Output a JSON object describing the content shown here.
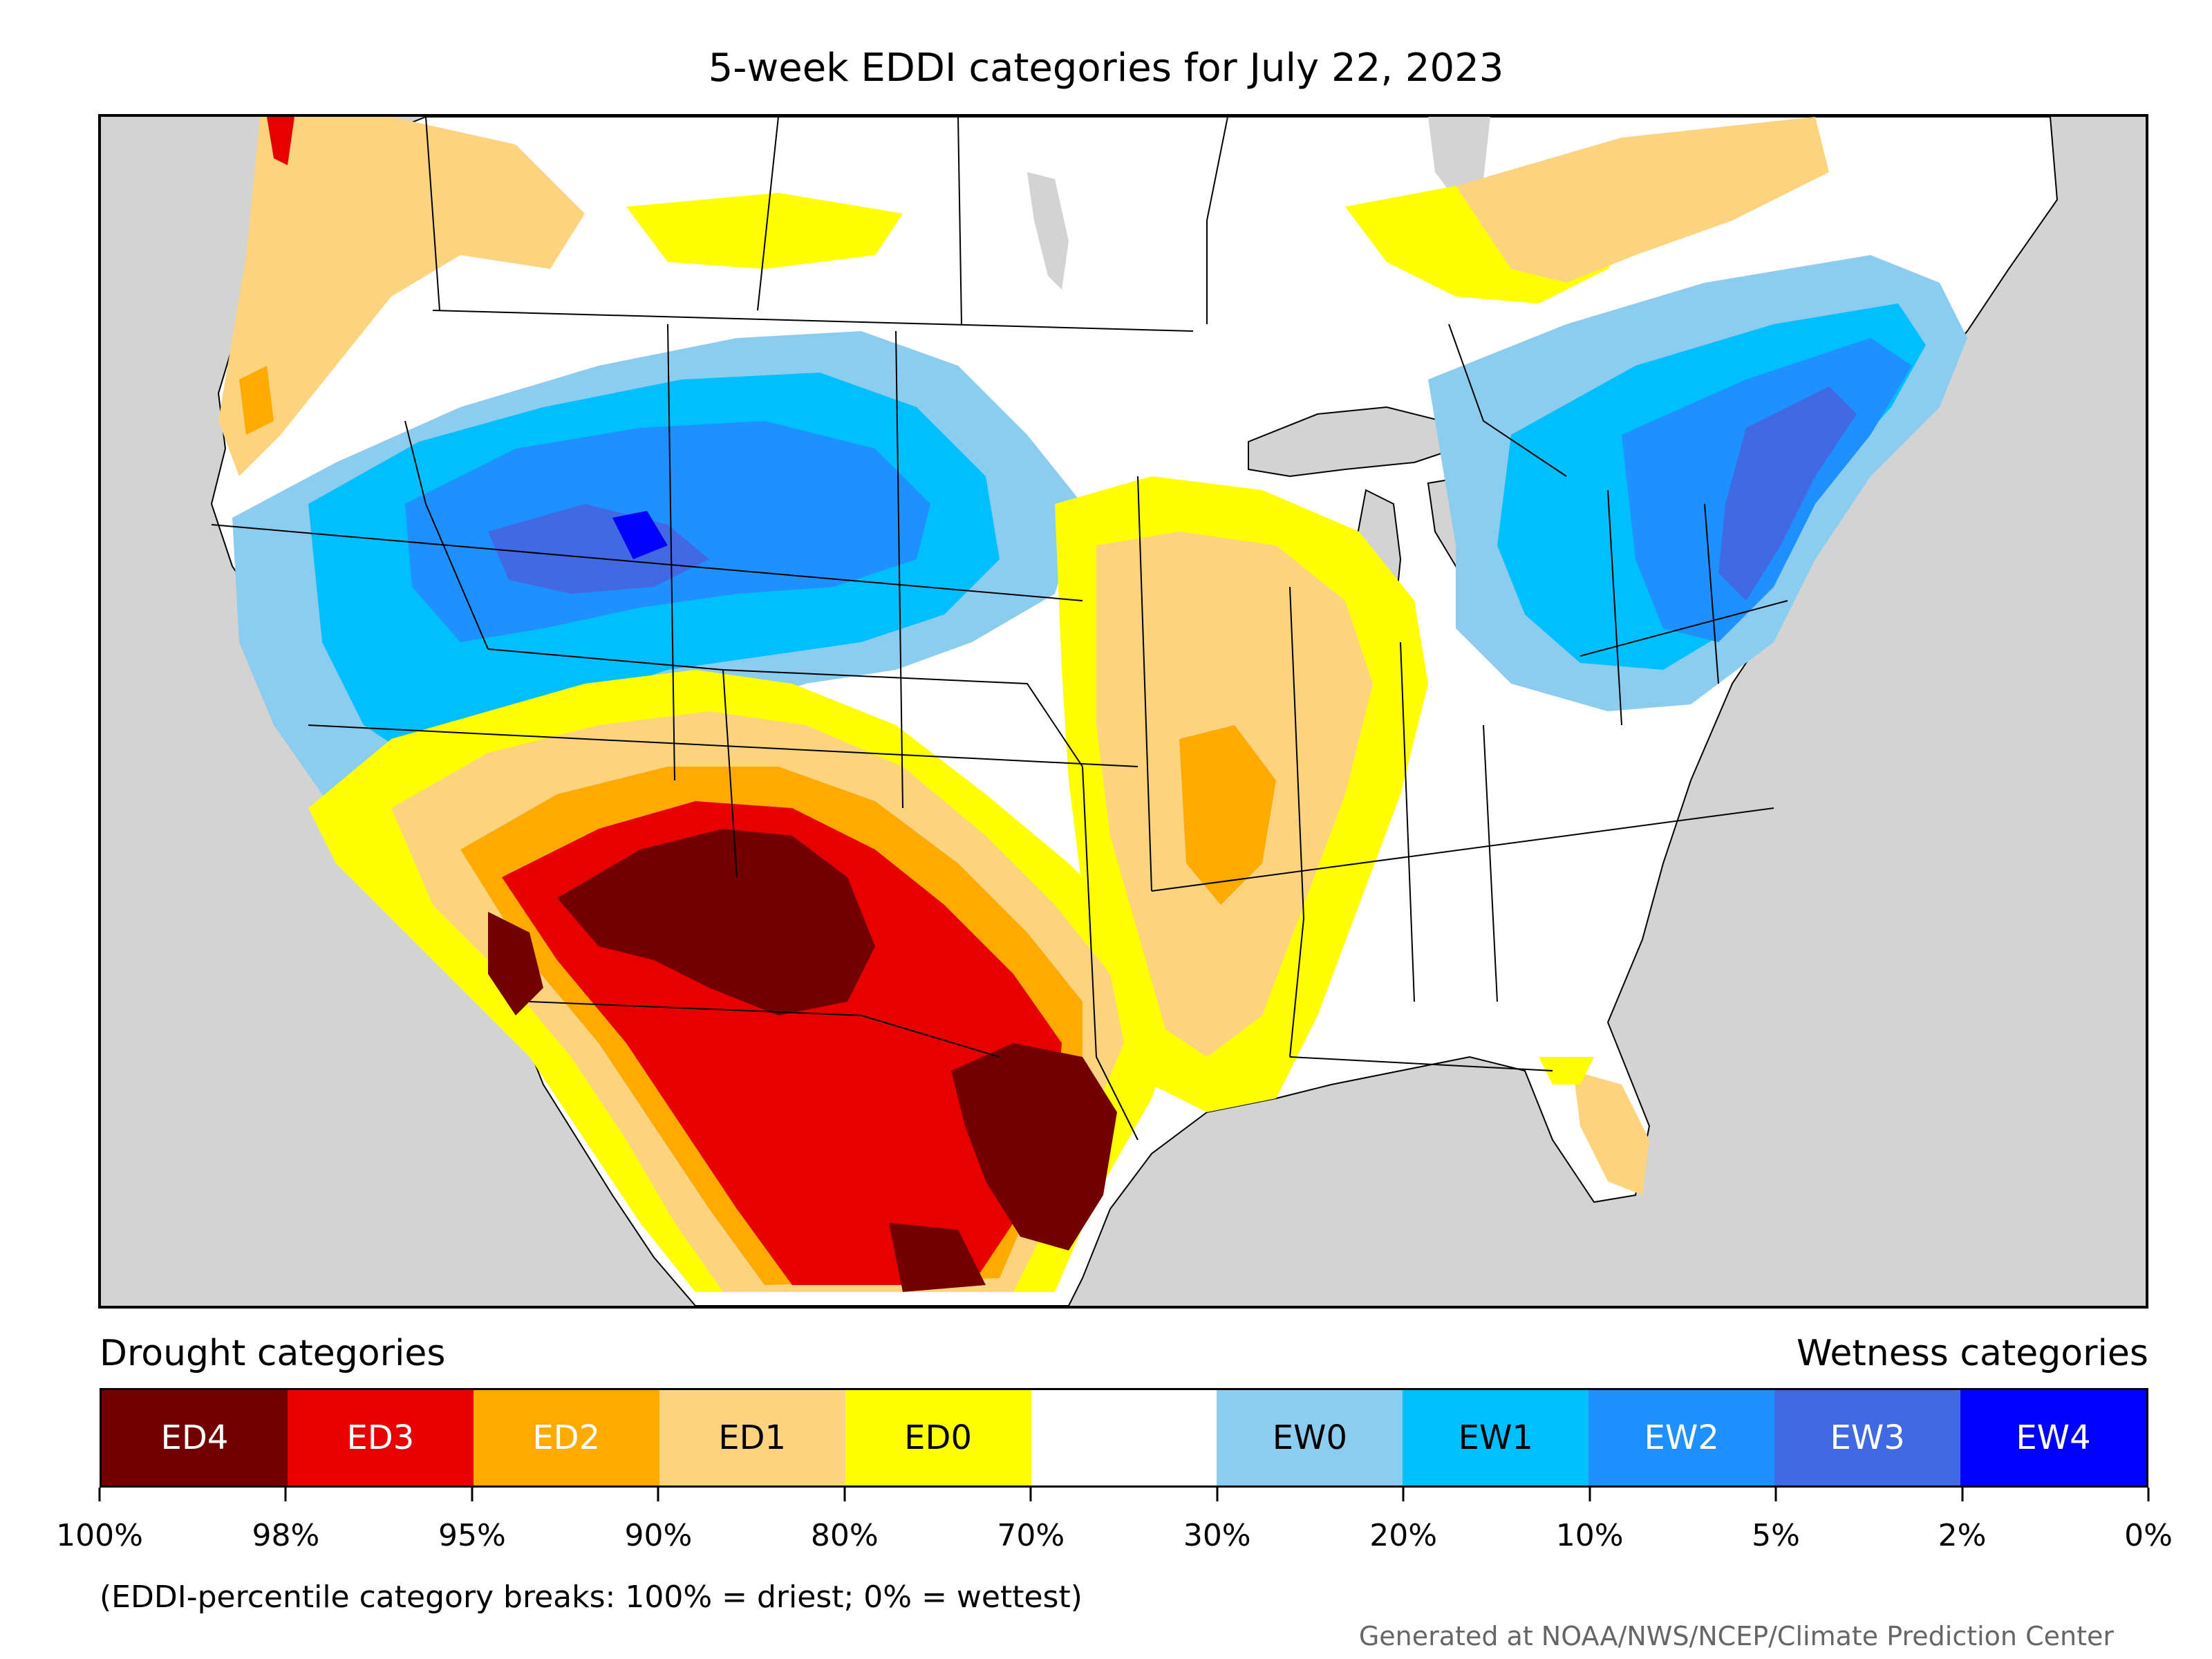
{
  "title": "5-week EDDI categories for July 22, 2023",
  "legend": {
    "left_label": "Drought categories",
    "right_label": "Wetness categories",
    "categories": [
      {
        "code": "ED4",
        "color": "#730000",
        "text_color": "#ffffff"
      },
      {
        "code": "ED3",
        "color": "#e60000",
        "text_color": "#ffffff"
      },
      {
        "code": "ED2",
        "color": "#ffaa00",
        "text_color": "#ffffff"
      },
      {
        "code": "ED1",
        "color": "#fcd37f",
        "text_color": "#000000"
      },
      {
        "code": "ED0",
        "color": "#ffff00",
        "text_color": "#000000"
      },
      {
        "code": "",
        "color": "#ffffff",
        "text_color": "#000000"
      },
      {
        "code": "EW0",
        "color": "#8ccdef",
        "text_color": "#000000"
      },
      {
        "code": "EW1",
        "color": "#00bfff",
        "text_color": "#000000"
      },
      {
        "code": "EW2",
        "color": "#1e90ff",
        "text_color": "#ffffff"
      },
      {
        "code": "EW3",
        "color": "#4169e1",
        "text_color": "#ffffff"
      },
      {
        "code": "EW4",
        "color": "#0000ff",
        "text_color": "#ffffff"
      }
    ],
    "tick_labels": [
      "100%",
      "98%",
      "95%",
      "90%",
      "80%",
      "70%",
      "30%",
      "20%",
      "10%",
      "5%",
      "2%",
      "0%"
    ]
  },
  "note": "(EDDI-percentile category breaks: 100% = driest; 0% = wettest)",
  "credit": "Generated at NOAA/NWS/NCEP/Climate Prediction Center",
  "map": {
    "background_color": "#d3d3d3",
    "land_color": "#ffffff",
    "boundary_color": "#000000"
  }
}
